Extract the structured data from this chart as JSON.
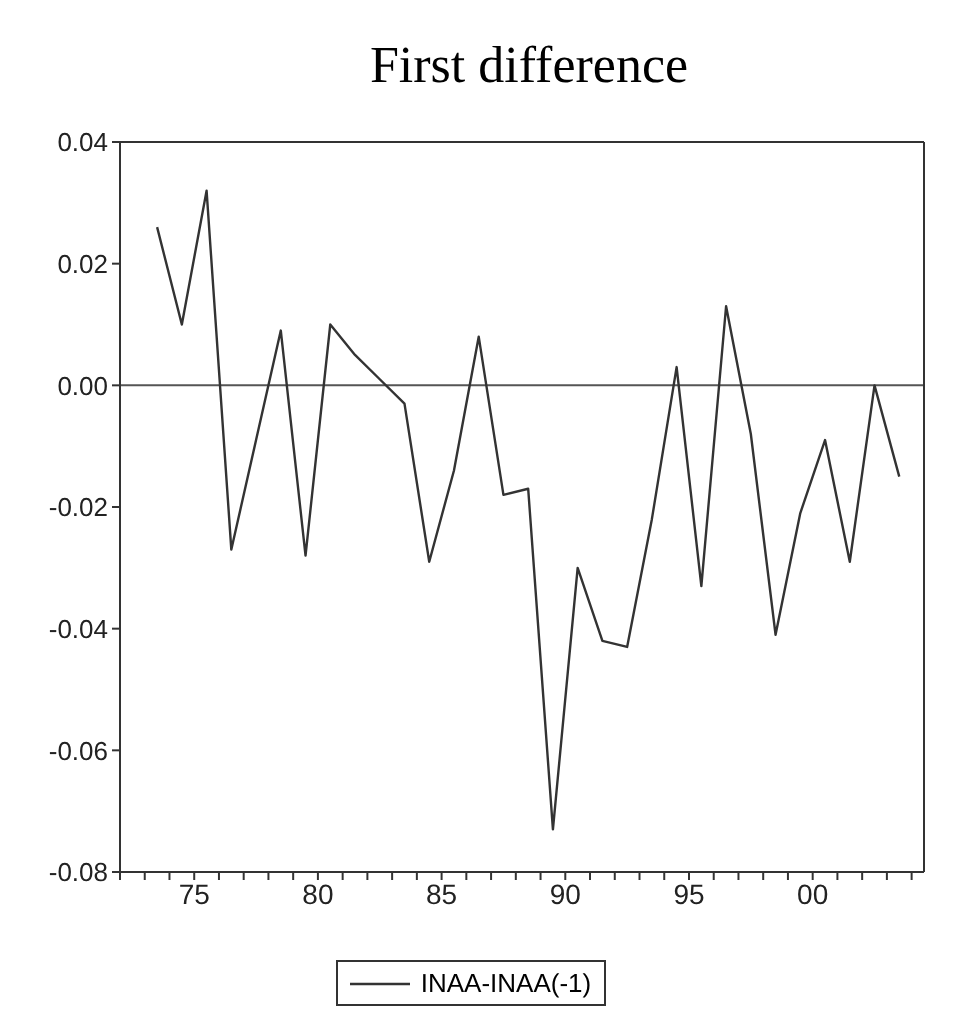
{
  "chart_data": {
    "type": "line",
    "title": "First difference",
    "x": [
      1973.5,
      1974.5,
      1975.5,
      1976.5,
      1977.5,
      1978.5,
      1979.5,
      1980.5,
      1981.5,
      1982.5,
      1983.5,
      1984.5,
      1985.5,
      1986.5,
      1987.5,
      1988.5,
      1989.5,
      1990.5,
      1991.5,
      1992.5,
      1993.5,
      1994.5,
      1995.5,
      1996.5,
      1997.5,
      1998.5,
      1999.5,
      2000.5,
      2001.5,
      2002.5,
      2003.5
    ],
    "series": [
      {
        "name": "INAA-INAA(-1)",
        "color": "#333333",
        "values": [
          0.026,
          0.01,
          0.032,
          -0.027,
          -0.009,
          0.009,
          -0.028,
          0.01,
          0.005,
          0.001,
          -0.003,
          -0.029,
          -0.014,
          0.008,
          -0.018,
          -0.017,
          -0.073,
          -0.03,
          -0.042,
          -0.043,
          -0.022,
          0.003,
          -0.033,
          0.013,
          -0.008,
          -0.041,
          -0.021,
          -0.009,
          -0.029,
          0.0,
          -0.015
        ]
      }
    ],
    "xlim": [
      1972,
      2004.5
    ],
    "xticks": [
      {
        "value": 1972,
        "label": null
      },
      {
        "value": 1973,
        "label": null
      },
      {
        "value": 1974,
        "label": null
      },
      {
        "value": 1975,
        "label": "75"
      },
      {
        "value": 1976,
        "label": null
      },
      {
        "value": 1977,
        "label": null
      },
      {
        "value": 1978,
        "label": null
      },
      {
        "value": 1979,
        "label": null
      },
      {
        "value": 1980,
        "label": "80"
      },
      {
        "value": 1981,
        "label": null
      },
      {
        "value": 1982,
        "label": null
      },
      {
        "value": 1983,
        "label": null
      },
      {
        "value": 1984,
        "label": null
      },
      {
        "value": 1985,
        "label": "85"
      },
      {
        "value": 1986,
        "label": null
      },
      {
        "value": 1987,
        "label": null
      },
      {
        "value": 1988,
        "label": null
      },
      {
        "value": 1989,
        "label": null
      },
      {
        "value": 1990,
        "label": "90"
      },
      {
        "value": 1991,
        "label": null
      },
      {
        "value": 1992,
        "label": null
      },
      {
        "value": 1993,
        "label": null
      },
      {
        "value": 1994,
        "label": null
      },
      {
        "value": 1995,
        "label": "95"
      },
      {
        "value": 1996,
        "label": null
      },
      {
        "value": 1997,
        "label": null
      },
      {
        "value": 1998,
        "label": null
      },
      {
        "value": 1999,
        "label": null
      },
      {
        "value": 2000,
        "label": "00"
      },
      {
        "value": 2001,
        "label": null
      },
      {
        "value": 2002,
        "label": null
      },
      {
        "value": 2003,
        "label": null
      },
      {
        "value": 2004,
        "label": null
      }
    ],
    "ylim": [
      -0.08,
      0.04
    ],
    "yticks": [
      -0.08,
      -0.06,
      -0.04,
      -0.02,
      {
        "value": 0,
        "label": "0.00"
      },
      0.02,
      0.04
    ],
    "ref_lines": [
      {
        "axis": "y",
        "value": 0,
        "color": "#555555"
      }
    ],
    "legend": "bottom",
    "marker": "none",
    "line_style": "solid",
    "grid": false
  }
}
